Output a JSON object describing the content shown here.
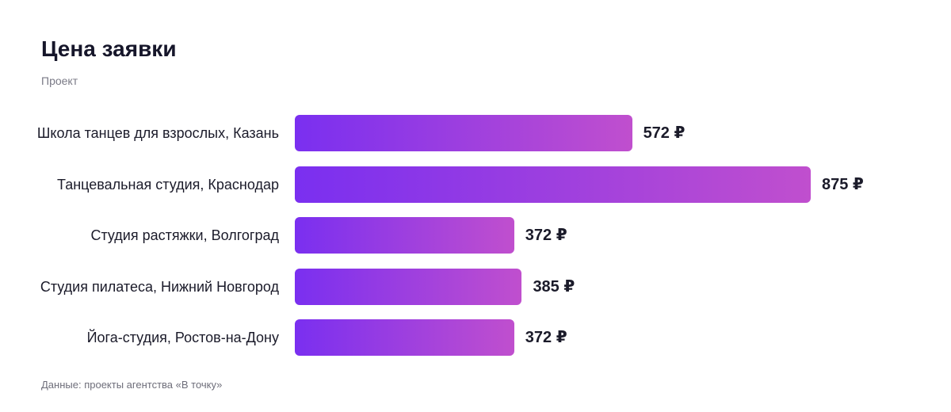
{
  "chart_data": {
    "type": "bar",
    "orientation": "horizontal",
    "title": "Цена заявки",
    "subtitle": "Проект",
    "source": "Данные: проекты агентства «В точку»",
    "categories": [
      "Школа танцев для взрослых, Казань",
      "Танцевальная студия, Краснодар",
      "Студия растяжки, Волгоград",
      "Студия пилатеса, Нижний Новгород",
      "Йога-студия, Ростов-на-Дону"
    ],
    "values": [
      572,
      875,
      372,
      385,
      372
    ],
    "value_labels": [
      "572 ₽",
      "875 ₽",
      "372 ₽",
      "385 ₽",
      "372 ₽"
    ],
    "color": "#7a2ff0"
  }
}
